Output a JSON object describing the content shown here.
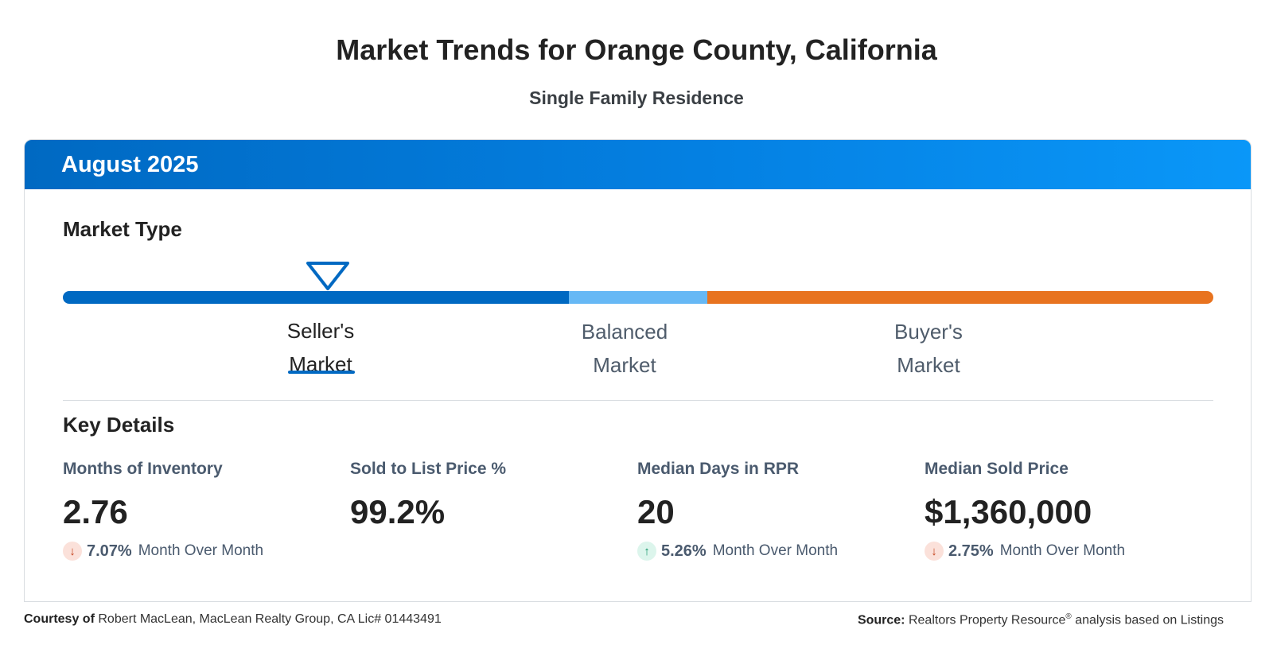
{
  "header": {
    "title": "Market Trends for Orange County, California",
    "subtitle": "Single Family Residence"
  },
  "card": {
    "period": "August 2025",
    "market_type": {
      "heading": "Market Type",
      "selected": "Seller's Market",
      "marker_position_fraction": 0.23,
      "segment_colors": {
        "seller": "#0069c2",
        "balanced": "#66b8f5",
        "buyer": "#e8731f"
      },
      "labels": {
        "seller_line1": "Seller's",
        "seller_line2": "Market",
        "balanced_line1": "Balanced",
        "balanced_line2": "Market",
        "buyer_line1": "Buyer's",
        "buyer_line2": "Market"
      }
    },
    "key_details": {
      "heading": "Key Details",
      "metrics": [
        {
          "label": "Months of Inventory",
          "value": "2.76",
          "change_direction": "down",
          "change_pct": "7.07%",
          "change_text": "Month Over Month"
        },
        {
          "label": "Sold to List Price %",
          "value": "99.2%"
        },
        {
          "label": "Median Days in RPR",
          "value": "20",
          "change_direction": "up",
          "change_pct": "5.26%",
          "change_text": "Month Over Month"
        },
        {
          "label": "Median Sold Price",
          "value": "$1,360,000",
          "change_direction": "down",
          "change_pct": "2.75%",
          "change_text": "Month Over Month"
        }
      ]
    }
  },
  "footer": {
    "courtesy_label": "Courtesy of",
    "courtesy_text": "Robert MacLean, MacLean Realty Group, CA Lic# 01443491",
    "source_label": "Source:",
    "source_text_1": "Realtors Property Resource",
    "source_sup": "®",
    "source_text_2": " analysis based on Listings"
  },
  "icons": {
    "down": "arrow-down-icon",
    "up": "arrow-up-icon",
    "marker": "triangle-marker-icon"
  }
}
